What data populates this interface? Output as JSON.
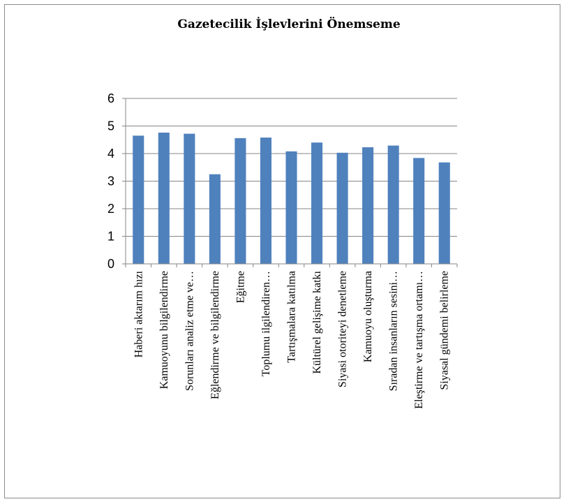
{
  "chart_data": {
    "type": "bar",
    "title": "Gazetecilik İşlevlerini Önemseme",
    "xlabel": "",
    "ylabel": "",
    "ylim": [
      0,
      6
    ],
    "yticks": [
      0,
      1,
      2,
      3,
      4,
      5,
      6
    ],
    "grid": true,
    "legend": "none",
    "bar_color": "#4f81bd",
    "categories": [
      "Haberi aktarım hızı",
      "Kamuoyunu bilgilendirme",
      "Sorunları analiz etme ve…",
      "Eğlendirme ve bilgilendirme",
      "Eğitme",
      "Toplumu ilgilendiren…",
      "Tartışmalara katılma",
      "Kültürel gelişime katkı",
      "Siyasi otoriteyi denetleme",
      "Kamuoyu oluşturma",
      "Sıradan insanların sesini…",
      "Eleştirme ve tartışma ortamı…",
      "Siyasal gündemi belirleme"
    ],
    "values": [
      4.65,
      4.76,
      4.72,
      3.25,
      4.56,
      4.58,
      4.08,
      4.4,
      4.03,
      4.23,
      4.29,
      3.84,
      3.68
    ]
  }
}
